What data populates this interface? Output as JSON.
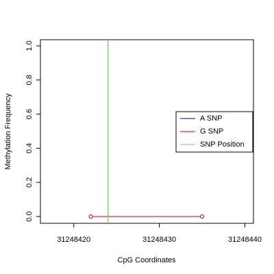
{
  "chart_data": {
    "type": "line",
    "xlabel": "CpG Coordinates",
    "ylabel": "Methylation Frequency",
    "series": [
      {
        "name": "A SNP",
        "color": "#000080",
        "x": [
          31248422,
          31248435
        ],
        "values": [
          0,
          0
        ]
      },
      {
        "name": "G SNP",
        "color": "#cc0000",
        "x": [
          31248422,
          31248435
        ],
        "values": [
          0,
          0
        ]
      }
    ],
    "vlines": [
      {
        "name": "SNP Position",
        "color": "#66dd66",
        "x": 31248424
      }
    ],
    "xlim": [
      31248416.1,
      31248441.0
    ],
    "xticks": [
      31248420,
      31248430,
      31248440
    ],
    "ylim": [
      -0.04,
      1.036
    ],
    "yticks": [
      {
        "value": 0,
        "label": "0.0"
      },
      0.2,
      0.4,
      0.6,
      0.8,
      {
        "value": 1,
        "label": "1.0"
      }
    ],
    "legend": "right"
  }
}
